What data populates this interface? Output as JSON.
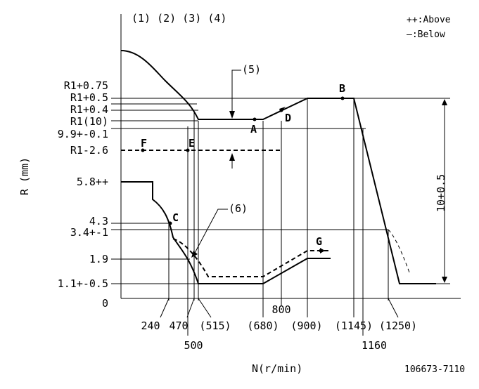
{
  "header": {
    "notes": "(1) (2) (3) (4)",
    "legend_above": "++:Above",
    "legend_below": "—:Below"
  },
  "axes": {
    "ylabel": "R (mm)",
    "xlabel": "N(r/min)",
    "drawing_no": "106673-7110"
  },
  "y_labels": [
    "R1+0.75",
    "R1+0.5",
    "R1+0.4",
    "R1(10)",
    "9.9+-0.1",
    "R1-2.6",
    "5.8++",
    "4.3",
    "3.4+-1",
    "1.9",
    "1.1+-0.5",
    "0"
  ],
  "x_labels": {
    "top_row": [
      "240",
      "470",
      "(515)",
      "(680)",
      "(900)",
      "(1145)",
      "(1250)"
    ],
    "bottom_row": [
      "500",
      "800",
      "1160"
    ]
  },
  "point_labels": [
    "A",
    "B",
    "C",
    "D",
    "E",
    "F",
    "G",
    "(5)",
    "(6)"
  ],
  "dimension_label": "10+0.5"
}
